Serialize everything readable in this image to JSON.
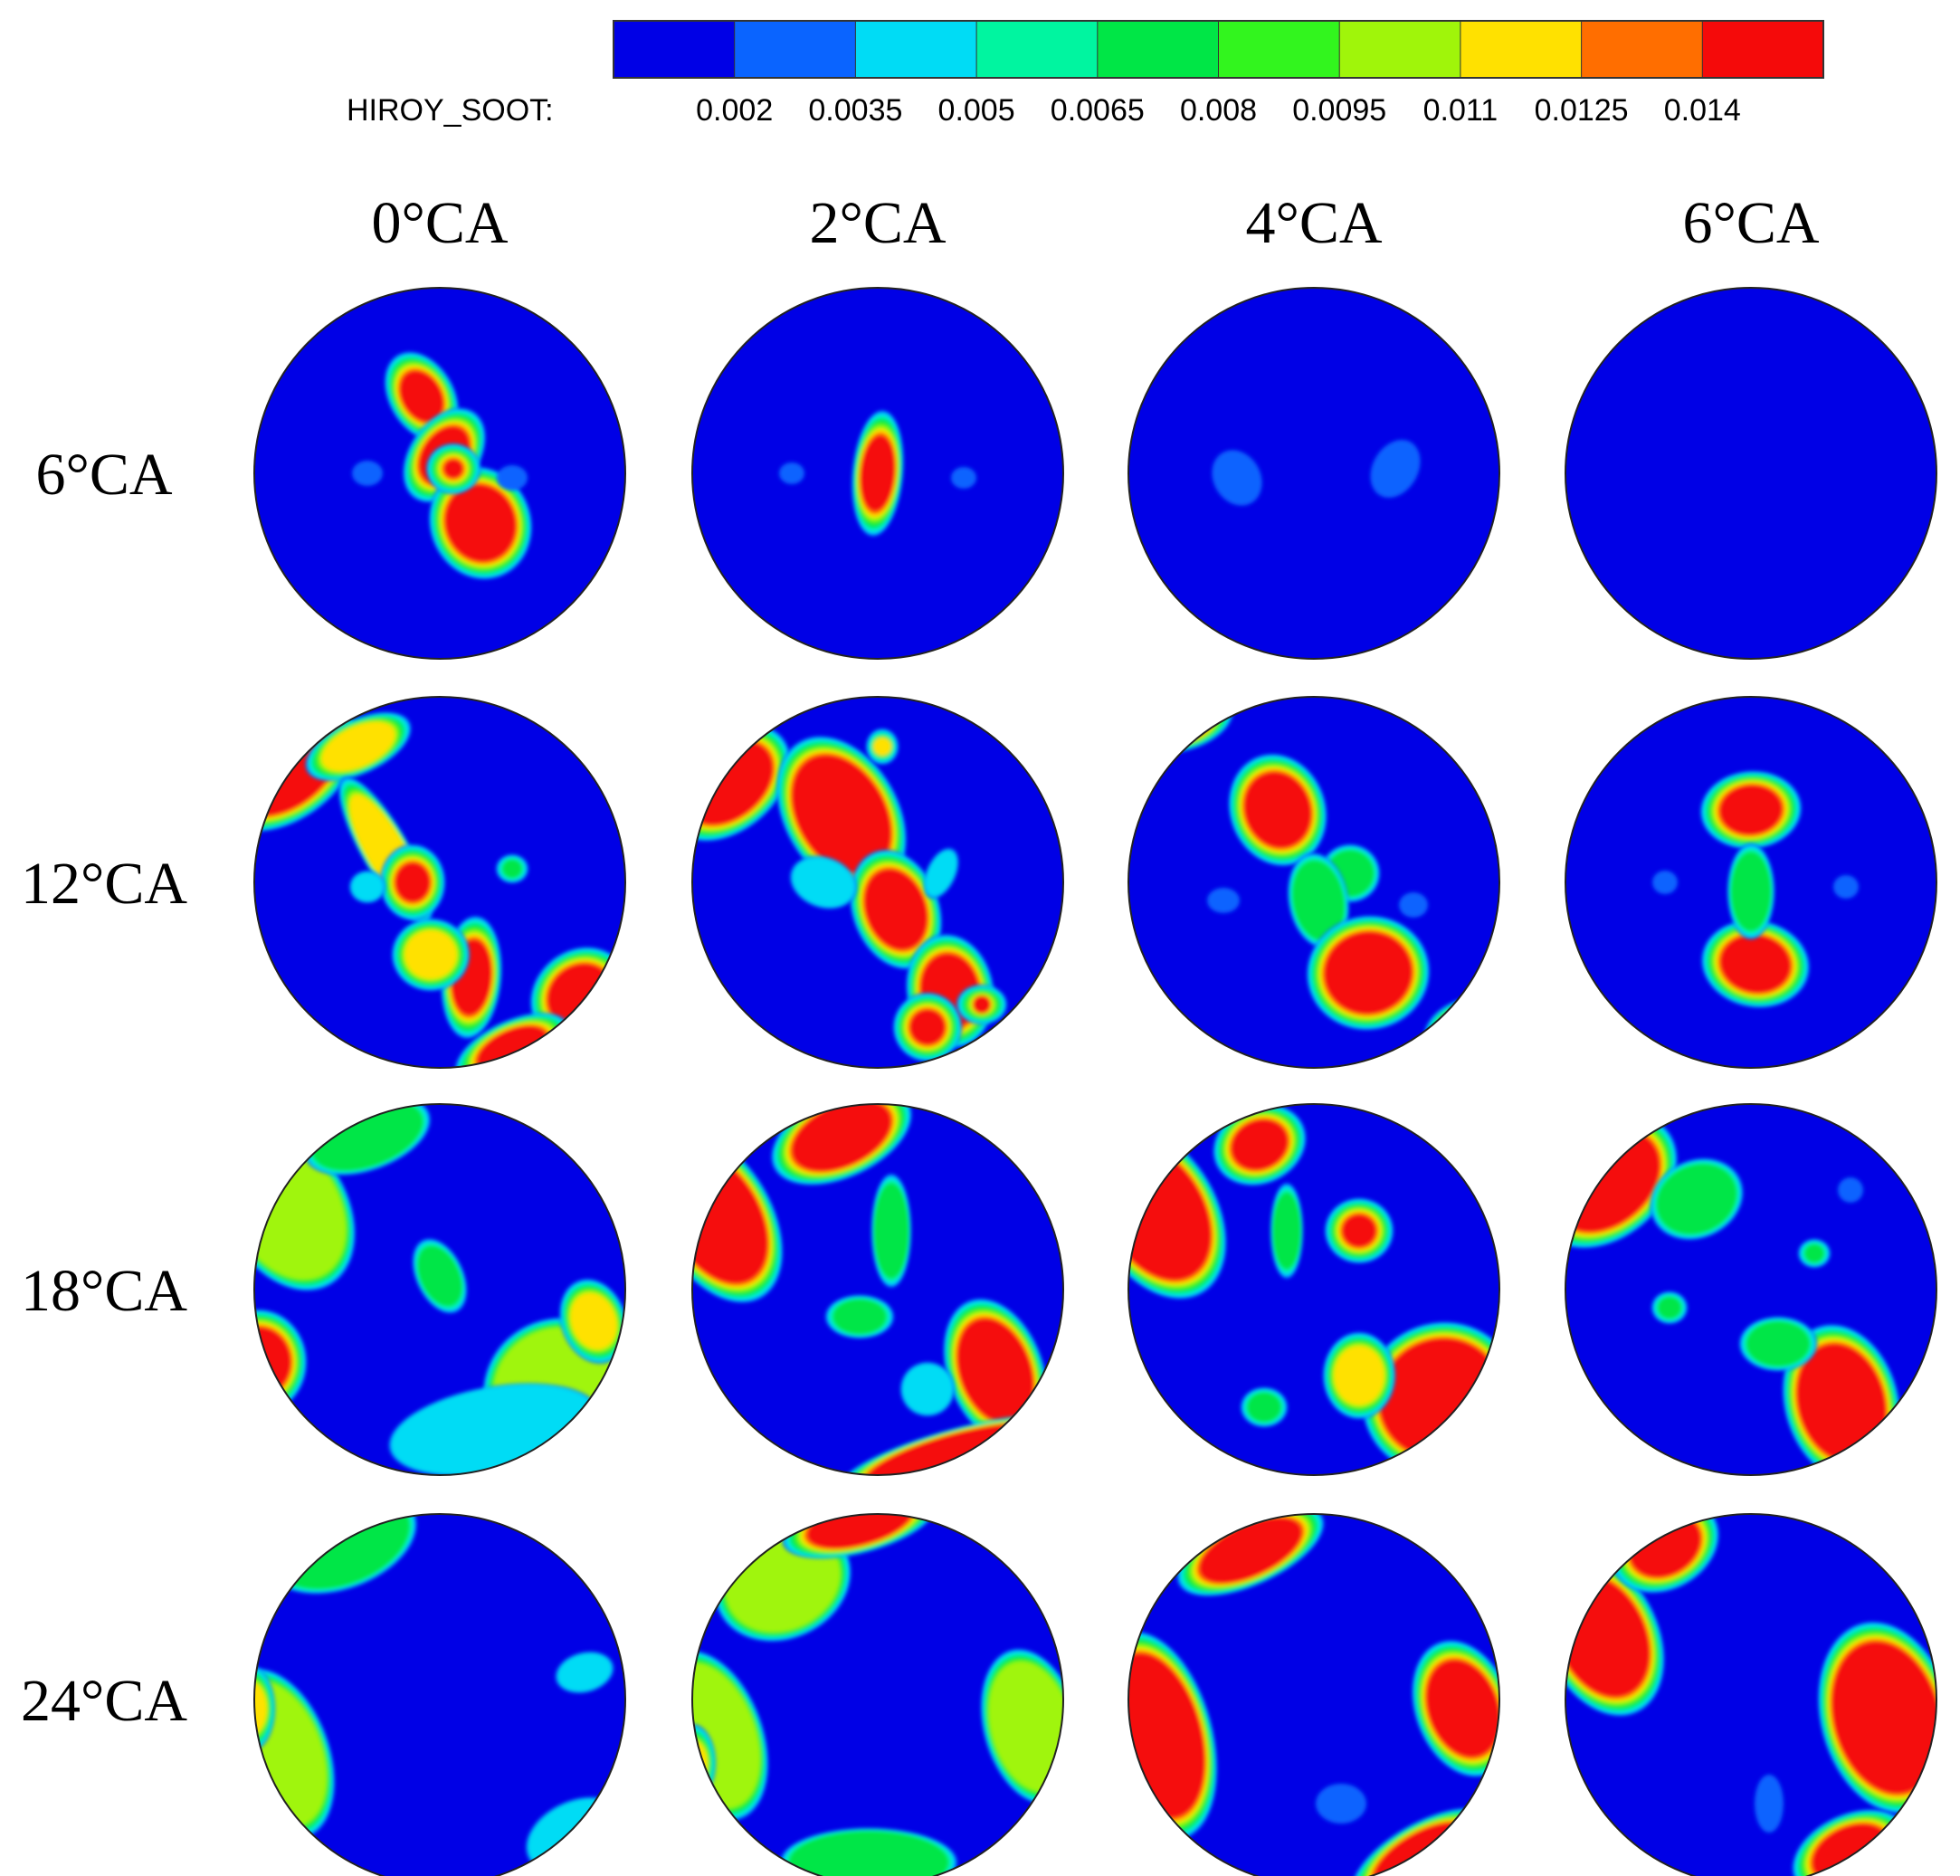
{
  "colorbar": {
    "variable_label": "HIROY_SOOT:",
    "levels": [
      "0.002",
      "0.0035",
      "0.005",
      "0.0065",
      "0.008",
      "0.0095",
      "0.011",
      "0.0125",
      "0.014"
    ],
    "colors": [
      "#0000e6",
      "#0a64ff",
      "#00dcf5",
      "#00f5a0",
      "#00e646",
      "#32f51e",
      "#a0f50a",
      "#ffe100",
      "#ff6e00",
      "#f50a0a"
    ]
  },
  "column_headers": [
    "0°CA",
    "2°CA",
    "4°CA",
    "6°CA"
  ],
  "row_headers": [
    "6°CA",
    "12°CA",
    "18°CA",
    "24°CA"
  ],
  "field_background": "#0000e6"
}
